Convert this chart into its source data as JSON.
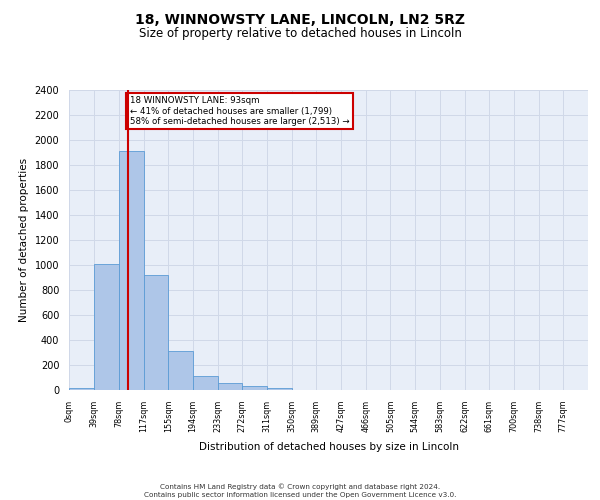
{
  "title1": "18, WINNOWSTY LANE, LINCOLN, LN2 5RZ",
  "title2": "Size of property relative to detached houses in Lincoln",
  "xlabel": "Distribution of detached houses by size in Lincoln",
  "ylabel": "Number of detached properties",
  "bin_labels": [
    "0sqm",
    "39sqm",
    "78sqm",
    "117sqm",
    "155sqm",
    "194sqm",
    "233sqm",
    "272sqm",
    "311sqm",
    "350sqm",
    "389sqm",
    "427sqm",
    "466sqm",
    "505sqm",
    "544sqm",
    "583sqm",
    "622sqm",
    "661sqm",
    "700sqm",
    "738sqm",
    "777sqm"
  ],
  "bar_heights": [
    20,
    1010,
    1910,
    920,
    310,
    110,
    55,
    35,
    20,
    0,
    0,
    0,
    0,
    0,
    0,
    0,
    0,
    0,
    0,
    0,
    0
  ],
  "bar_color": "#aec6e8",
  "bar_edge_color": "#5b9bd5",
  "ylim": [
    0,
    2400
  ],
  "yticks": [
    0,
    200,
    400,
    600,
    800,
    1000,
    1200,
    1400,
    1600,
    1800,
    2000,
    2200,
    2400
  ],
  "property_label": "18 WINNOWSTY LANE: 93sqm",
  "annotation_line1": "← 41% of detached houses are smaller (1,799)",
  "annotation_line2": "58% of semi-detached houses are larger (2,513) →",
  "red_line_bin": 2.38,
  "vline_color": "#cc0000",
  "annotation_box_color": "#cc0000",
  "footer_line1": "Contains HM Land Registry data © Crown copyright and database right 2024.",
  "footer_line2": "Contains public sector information licensed under the Open Government Licence v3.0.",
  "grid_color": "#d0d8e8",
  "bg_color": "#e8eef8",
  "bin_width": 39
}
